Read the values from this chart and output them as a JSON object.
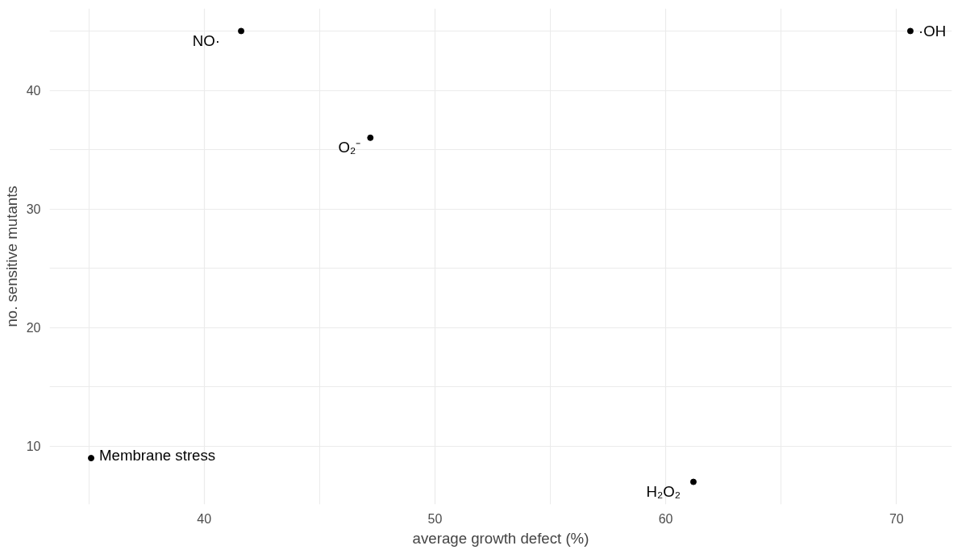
{
  "chart_data": {
    "type": "scatter",
    "xlabel": "average growth defect (%)",
    "ylabel": "no. sensitive mutants",
    "x": [
      35.1,
      41.6,
      47.2,
      61.2,
      70.6
    ],
    "values": [
      9,
      45,
      36,
      7,
      45
    ],
    "color": "#000000",
    "marker": "circle",
    "grid": true,
    "xlim": [
      33.3,
      72.4
    ],
    "ylim": [
      5.1,
      46.9
    ],
    "xticks": [
      40,
      50,
      60,
      70
    ],
    "yticks": [
      10,
      20,
      30,
      40
    ],
    "annotations": [
      {
        "text": "Membrane stress",
        "x": 35.1,
        "y": 9
      },
      {
        "text": "NO·",
        "x": 41.6,
        "y": 45
      },
      {
        "text": "O₂⁻",
        "x": 47.2,
        "y": 36
      },
      {
        "text": "H₂O₂",
        "x": 61.2,
        "y": 7
      },
      {
        "text": "·OH",
        "x": 70.6,
        "y": 45
      }
    ]
  }
}
